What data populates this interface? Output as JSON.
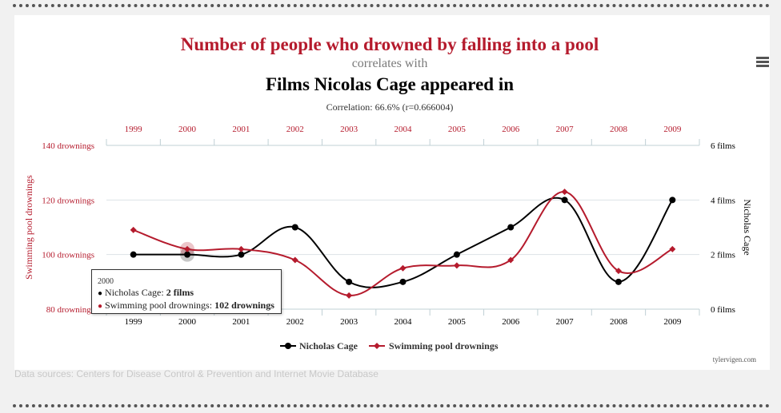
{
  "source_note": "Data sources: Centers for Disease Control & Prevention and Internet Movie Database",
  "credit": "tylervigen.com",
  "menu_icon": "hamburger-menu-icon",
  "colors": {
    "cage": "#000000",
    "drownings": "#b51b2d",
    "subtitle": "#7a7a7a"
  },
  "tooltip": {
    "year": "2000",
    "row1_label": "Nicholas Cage:",
    "row1_value": "2 films",
    "row2_label": "Swimming pool drownings:",
    "row2_value": "102 drownings"
  },
  "chart_data": {
    "type": "line",
    "title": "Number of people who drowned by falling into a pool",
    "subtitle": "correlates with",
    "title2": "Films Nicolas Cage appeared in",
    "correlation": "Correlation: 66.6% (r=0.666004)",
    "categories": [
      "1999",
      "2000",
      "2001",
      "2002",
      "2003",
      "2004",
      "2005",
      "2006",
      "2007",
      "2008",
      "2009"
    ],
    "series": [
      {
        "name": "Nicholas Cage",
        "axis": "right",
        "color": "#000000",
        "marker": "circle",
        "values": [
          2,
          2,
          2,
          3,
          1,
          1,
          2,
          3,
          4,
          1,
          4
        ]
      },
      {
        "name": "Swimming pool drownings",
        "axis": "left",
        "color": "#b51b2d",
        "marker": "diamond",
        "values": [
          109,
          102,
          102,
          98,
          85,
          95,
          96,
          98,
          123,
          94,
          102
        ]
      }
    ],
    "y_left": {
      "label": "Swimming pool drownings",
      "ylim": [
        80,
        140
      ],
      "ticks": [
        "80 drownings",
        "100 drownings",
        "120 drownings",
        "140 drownings"
      ]
    },
    "y_right": {
      "label": "Nicholas Cage",
      "ylim": [
        0,
        6
      ],
      "ticks": [
        "0 films",
        "2 films",
        "4 films",
        "6 films"
      ]
    },
    "grid": true,
    "legend": "bottom-center",
    "highlight_category": "2000"
  }
}
